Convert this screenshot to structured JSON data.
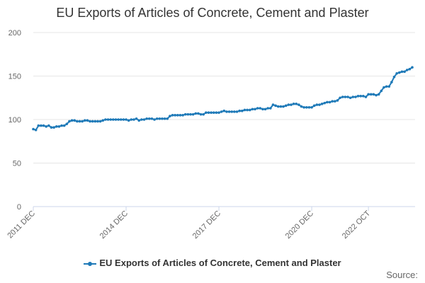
{
  "chart_data": {
    "type": "line",
    "title": "EU Exports of Articles of Concrete, Cement and Plaster",
    "xlabel": "",
    "ylabel": "",
    "ylim": [
      0,
      200
    ],
    "yticks": [
      0,
      50,
      100,
      150,
      200
    ],
    "xticks": [
      "2011 DEC",
      "2014 DEC",
      "2017 DEC",
      "2020 DEC",
      "2022 OCT"
    ],
    "x_start": "2011 DEC",
    "x_end": "2022 OCT",
    "grid": true,
    "legend_position": "bottom",
    "color": "#1f7ab8",
    "series": [
      {
        "name": "EU Exports of Articles of Concrete, Cement and Plaster",
        "values": [
          89,
          88,
          93,
          93,
          93,
          92,
          93,
          91,
          91,
          92,
          92,
          93,
          93,
          95,
          98,
          99,
          99,
          98,
          98,
          98,
          99,
          99,
          98,
          98,
          98,
          98,
          98,
          99,
          100,
          100,
          100,
          100,
          100,
          100,
          100,
          100,
          100,
          99,
          100,
          100,
          101,
          99,
          100,
          100,
          101,
          101,
          101,
          100,
          101,
          101,
          101,
          101,
          101,
          104,
          105,
          105,
          105,
          105,
          105,
          106,
          106,
          106,
          106,
          107,
          107,
          106,
          106,
          108,
          108,
          108,
          108,
          108,
          108,
          109,
          110,
          109,
          109,
          109,
          109,
          109,
          110,
          110,
          111,
          111,
          111,
          112,
          112,
          113,
          113,
          112,
          112,
          113,
          113,
          117,
          116,
          115,
          115,
          115,
          116,
          117,
          117,
          118,
          118,
          117,
          115,
          114,
          114,
          114,
          114,
          116,
          117,
          117,
          118,
          119,
          120,
          120,
          121,
          121,
          122,
          125,
          126,
          126,
          126,
          125,
          126,
          126,
          127,
          127,
          127,
          126,
          129,
          129,
          129,
          128,
          129,
          133,
          137,
          138,
          138,
          143,
          149,
          153,
          154,
          155,
          155,
          157,
          158,
          160
        ]
      }
    ]
  },
  "credits": "Source:"
}
